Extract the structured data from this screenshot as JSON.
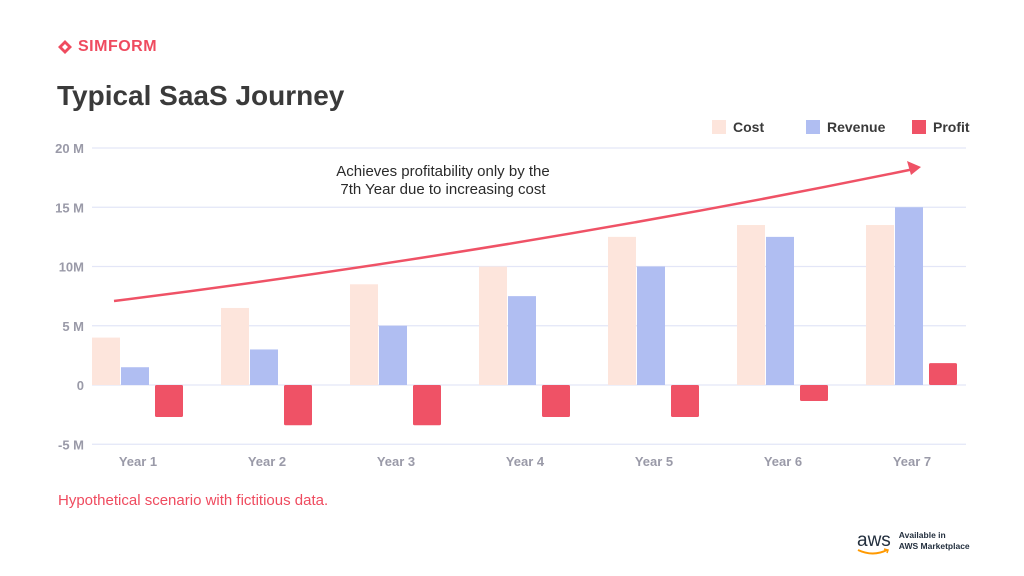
{
  "brand": {
    "logo_text": "SIMFORM",
    "color": "#ef4b5f"
  },
  "footnote": "Hypothetical scenario with fictitious data.",
  "aws_badge": {
    "logo_text": "aws",
    "line1": "Available in",
    "line2": "AWS Marketplace"
  },
  "chart_data": {
    "type": "bar",
    "title": "Typical SaaS Journey",
    "categories": [
      "Year 1",
      "Year 2",
      "Year 3",
      "Year 4",
      "Year 5",
      "Year 6",
      "Year 7"
    ],
    "series": [
      {
        "name": "Cost",
        "color": "#fde5dc",
        "values": [
          4,
          6.5,
          8.5,
          10,
          12.5,
          13.5,
          13.5
        ]
      },
      {
        "name": "Revenue",
        "color": "#b0bef2",
        "values": [
          1.5,
          3,
          5,
          7.5,
          10,
          12.5,
          15
        ]
      },
      {
        "name": "Profit",
        "color": "#ef5266",
        "values": [
          -2.7,
          -3.4,
          -3.4,
          -2.7,
          -2.7,
          -1.35,
          1.85
        ]
      }
    ],
    "yticks": [
      20,
      15,
      10,
      5,
      0,
      -5
    ],
    "ytick_labels": [
      "20 M",
      "15 M",
      "10M",
      "5 M",
      "0",
      "-5 M"
    ],
    "ylim": [
      -5,
      20
    ],
    "unit": "M",
    "grid": true,
    "legend": "top-right",
    "annotation": {
      "line1": "Achieves profitability only by the",
      "line2": "7th Year due to increasing cost",
      "arrow_color": "#ef5266"
    }
  }
}
